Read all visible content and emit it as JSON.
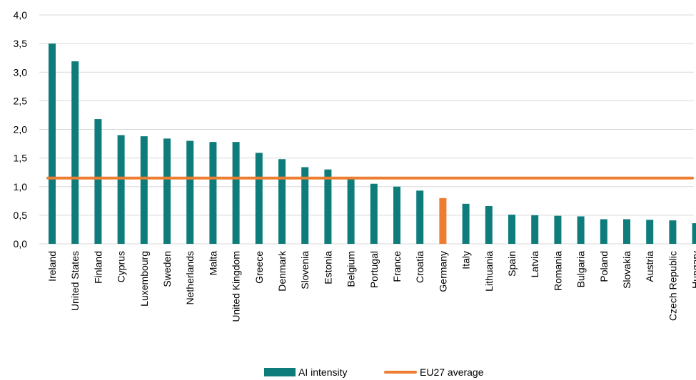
{
  "chart_data": {
    "type": "bar",
    "title": "",
    "xlabel": "",
    "ylabel": "",
    "ylim": [
      0,
      4.0
    ],
    "yticks": [
      "0,0",
      "0,5",
      "1,0",
      "1,5",
      "2,0",
      "2,5",
      "3,0",
      "3,5",
      "4,0"
    ],
    "grid": true,
    "legend_position": "bottom",
    "categories": [
      "Ireland",
      "United States",
      "Finland",
      "Cyprus",
      "Luxembourg",
      "Sweden",
      "Netherlands",
      "Malta",
      "United Kingdom",
      "Greece",
      "Denmark",
      "Slovenia",
      "Estonia",
      "Belgium",
      "Portugal",
      "France",
      "Croatia",
      "Germany",
      "Italy",
      "Lithuania",
      "Spain",
      "Latvia",
      "Romania",
      "Bulgaria",
      "Poland",
      "Slovakia",
      "Austria",
      "Czech Republic",
      "Hungary"
    ],
    "series": [
      {
        "name": "AI intensity",
        "type": "bar",
        "color": "#0e7c7b",
        "highlight_color": "#ed7d31",
        "highlight_category": "Germany",
        "values": [
          3.5,
          3.19,
          2.18,
          1.9,
          1.88,
          1.84,
          1.8,
          1.78,
          1.78,
          1.59,
          1.48,
          1.34,
          1.3,
          1.13,
          1.05,
          1.0,
          0.93,
          0.8,
          0.7,
          0.66,
          0.51,
          0.5,
          0.49,
          0.48,
          0.43,
          0.43,
          0.42,
          0.41,
          0.36
        ]
      },
      {
        "name": "EU27 average",
        "type": "line",
        "color": "#ed7d31",
        "value": 1.15
      }
    ]
  }
}
